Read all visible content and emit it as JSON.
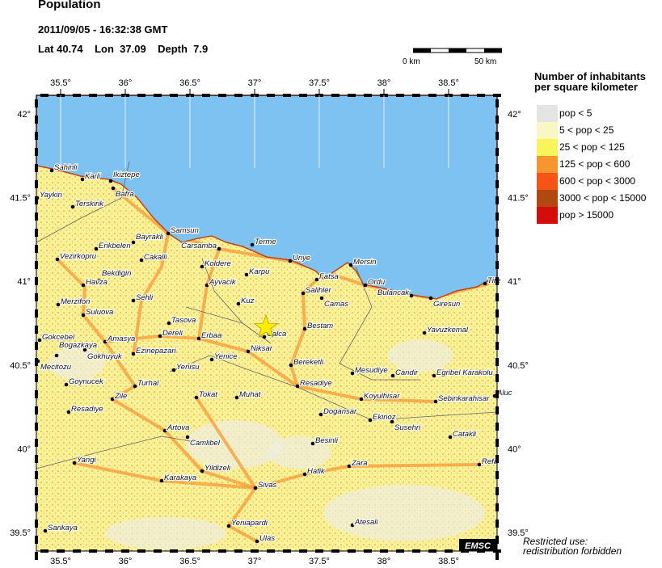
{
  "header": {
    "title": "Population",
    "datetime": "2011/09/05 - 16:32:38 GMT",
    "coords": "Lat 40.74    Lon  37.09    Depth  7.9"
  },
  "scale": {
    "left": "0 km",
    "right": "50 km"
  },
  "legend": {
    "title_line1": "Number of inhabitants",
    "title_line2": "per square kilometer",
    "items": [
      {
        "label": "pop < 5",
        "color": "#e4e4e2"
      },
      {
        "label": "5 < pop < 25",
        "color": "#f9f7c4"
      },
      {
        "label": "25 < pop < 125",
        "color": "#f9f45a"
      },
      {
        "label": "125 < pop < 600",
        "color": "#f7952f"
      },
      {
        "label": "600 < pop < 3000",
        "color": "#f75317"
      },
      {
        "label": "3000 < pop < 15000",
        "color": "#b1480f"
      },
      {
        "label": "pop > 15000",
        "color": "#d40c0c"
      }
    ]
  },
  "map": {
    "lon_ticks": [
      "35.5°",
      "36°",
      "36.5°",
      "37°",
      "37.5°",
      "38°",
      "38.5°"
    ],
    "lat_ticks": [
      "42°",
      "41.5°",
      "41°",
      "40.5°",
      "40°",
      "39.5°"
    ],
    "sea_color": "#7ec2f2",
    "land_color": "#f9f196",
    "epicenter_icon": "star-icon",
    "epicenter_color": "#ffee00",
    "logo": "EMSC",
    "cities": [
      "Sahinli",
      "Karli",
      "Ikiztepe",
      "Bafra",
      "Yaykin",
      "Terskirik",
      "Samsun",
      "Erikbelen",
      "Bayrakli",
      "Carsamba",
      "Terme",
      "Vezirkopru",
      "Cakalli",
      "Koldere",
      "Karpu",
      "Unye",
      "Mersin",
      "Bekdigin",
      "Havza",
      "Ayvacik",
      "Fatsa",
      "Ordu",
      "Salihler",
      "Camas",
      "Bulancak",
      "Giresun",
      "Tire",
      "Sehli",
      "Kuz",
      "Merzifon",
      "Suluova",
      "Tasova",
      "Bestam",
      "Yavuzkemal",
      "Dereli",
      "Erbaa",
      "Calca",
      "Gokcebel",
      "Amasya",
      "Niksar",
      "Gokhuyuk",
      "Bogazkaya",
      "Ezinepazari",
      "Yenice",
      "Mecitozu",
      "Bereketli",
      "Mesudiye",
      "Candir",
      "Egribel Karakolu",
      "Yenisu",
      "Goynucek",
      "Turhal",
      "Resadiye",
      "Zile",
      "Tokat",
      "Muhat",
      "Koyulhisar",
      "Sebinkarahisar",
      "Aluc",
      "Resadiye",
      "Dogansar",
      "Ekinoz",
      "Susehri",
      "Artova",
      "Camlibel",
      "Catakli",
      "Besinli",
      "Yangi",
      "Yildizeli",
      "Hafik",
      "Zara",
      "Refa",
      "Karakaya",
      "Sivas",
      "Yeniapardi",
      "Atesali",
      "Sarikaya",
      "Ulas"
    ]
  },
  "note": {
    "line1": "Restricted use:",
    "line2": "redistribution forbidden"
  }
}
